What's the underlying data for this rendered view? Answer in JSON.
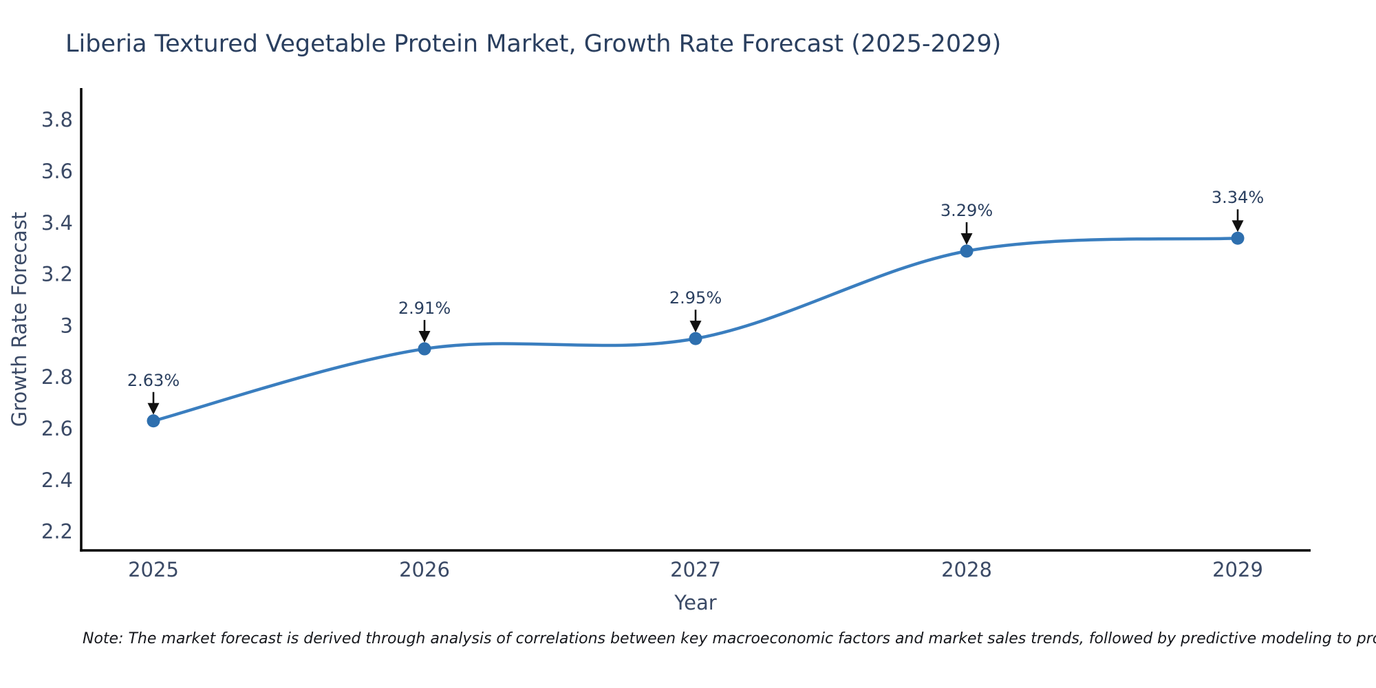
{
  "title": "Liberia Textured Vegetable Protein Market, Growth Rate Forecast (2025-2029)",
  "note": "Note: The market forecast is derived through analysis of correlations between key macroeconomic factors and market sales trends, followed by predictive modeling to project future sales",
  "chart_data": {
    "type": "line",
    "line_shape": "spline",
    "title": "Liberia Textured Vegetable Protein Market, Growth Rate Forecast (2025-2029)",
    "xlabel": "Year",
    "ylabel": "Growth Rate Forecast",
    "x": [
      2025,
      2026,
      2027,
      2028,
      2029
    ],
    "y": [
      2.63,
      2.91,
      2.95,
      3.29,
      3.34
    ],
    "point_labels": [
      "2.63%",
      "2.91%",
      "2.95%",
      "3.29%",
      "3.34%"
    ],
    "xtick_labels": [
      "2025",
      "2026",
      "2027",
      "2028",
      "2029"
    ],
    "ytick_values": [
      2.2,
      2.4,
      2.6,
      2.8,
      3.0,
      3.2,
      3.4,
      3.6,
      3.8
    ],
    "ytick_labels": [
      "2.2",
      "2.4",
      "2.6",
      "2.8",
      "3",
      "3.2",
      "3.4",
      "3.6",
      "3.8"
    ],
    "xlim": [
      2024.73,
      2029.27
    ],
    "ylim": [
      2.13,
      3.92
    ],
    "grid": false,
    "legend": false,
    "annotation_arrows": true,
    "colors": {
      "line": "#3a7ebf",
      "marker": "#2e6fae",
      "arrow": "#111111",
      "axis_line": "#000000",
      "title_text": "#2a3f5f",
      "tick_text": "#3b4a66",
      "label_text": "#2a3f5f",
      "note_text": "#16181d",
      "background": "#ffffff"
    }
  }
}
